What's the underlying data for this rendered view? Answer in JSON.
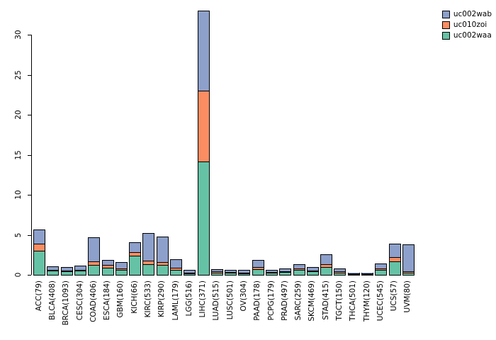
{
  "chart_data": {
    "type": "bar",
    "stacked": true,
    "title": "",
    "xlabel": "",
    "ylabel": "",
    "ylim": [
      0,
      33.5
    ],
    "yticks": [
      0,
      5,
      10,
      15,
      20,
      25,
      30
    ],
    "grid": false,
    "legend_position": "top-right",
    "categories": [
      "ACC(79)",
      "BLCA(408)",
      "BRCA(1093)",
      "CESC(304)",
      "COAD(406)",
      "ESCA(184)",
      "GBM(160)",
      "KICH(66)",
      "KIRC(533)",
      "KIRP(290)",
      "LAML(179)",
      "LGG(516)",
      "LIHC(371)",
      "LUAD(515)",
      "LUSC(501)",
      "OV(304)",
      "PAAD(178)",
      "PCPG(179)",
      "PRAD(497)",
      "SARC(259)",
      "SKCM(469)",
      "STAD(415)",
      "TGCT(150)",
      "THCA(501)",
      "THYM(120)",
      "UCEC(545)",
      "UCS(57)",
      "UVM(80)"
    ],
    "series": [
      {
        "name": "uc002waa",
        "color": "#66C2A5",
        "values": [
          3.0,
          0.5,
          0.4,
          0.5,
          1.2,
          0.9,
          0.6,
          2.4,
          1.3,
          1.2,
          0.6,
          0.2,
          14.2,
          0.3,
          0.25,
          0.2,
          0.7,
          0.25,
          0.35,
          0.6,
          0.4,
          1.0,
          0.3,
          0.05,
          0.1,
          0.6,
          1.7,
          0.3
        ]
      },
      {
        "name": "uc010zoi",
        "color": "#FC8D62",
        "values": [
          0.9,
          0.1,
          0.1,
          0.15,
          0.5,
          0.3,
          0.2,
          0.4,
          0.5,
          0.4,
          0.3,
          0.1,
          8.8,
          0.1,
          0.1,
          0.1,
          0.3,
          0.1,
          0.1,
          0.2,
          0.15,
          0.3,
          0.1,
          0.03,
          0.03,
          0.2,
          0.5,
          0.1
        ]
      },
      {
        "name": "uc002wab",
        "color": "#8DA0CB",
        "values": [
          1.7,
          0.4,
          0.4,
          0.45,
          2.9,
          0.6,
          0.7,
          1.2,
          3.3,
          3.1,
          1.0,
          0.2,
          10.0,
          0.2,
          0.15,
          0.2,
          0.8,
          0.15,
          0.25,
          0.4,
          0.35,
          1.2,
          0.3,
          0.07,
          0.07,
          0.5,
          1.6,
          3.3
        ]
      }
    ]
  },
  "legend": {
    "items": [
      {
        "label": "uc002wab",
        "color": "#8DA0CB"
      },
      {
        "label": "uc010zoi",
        "color": "#FC8D62"
      },
      {
        "label": "uc002waa",
        "color": "#66C2A5"
      }
    ]
  }
}
